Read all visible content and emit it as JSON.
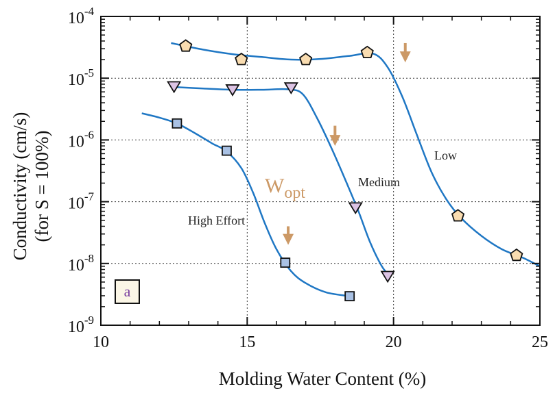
{
  "chart_data": {
    "type": "scatter",
    "xlabel": "Molding Water Content (%)",
    "ylabel_line1": "Conductivity (cm/s)",
    "ylabel_line2": "(for S = 100%)",
    "xlim": [
      10,
      25
    ],
    "ylim": [
      1e-09,
      0.0001
    ],
    "yscale": "log",
    "grid": true,
    "x_ticks": [
      "10",
      "15",
      "20",
      "25"
    ],
    "y_ticks": [
      {
        "base": "10",
        "exp": "-9",
        "value": 1e-09
      },
      {
        "base": "10",
        "exp": "-8",
        "value": 1e-08
      },
      {
        "base": "10",
        "exp": "-7",
        "value": 1e-07
      },
      {
        "base": "10",
        "exp": "-6",
        "value": 1e-06
      },
      {
        "base": "10",
        "exp": "-5",
        "value": 1e-05
      },
      {
        "base": "10",
        "exp": "-4",
        "value": 0.0001
      }
    ],
    "series": [
      {
        "name": "Low",
        "marker": "pentagon",
        "marker_color": "#f9dcb0",
        "points": [
          [
            12.9,
            3.3e-05
          ],
          [
            14.8,
            2e-05
          ],
          [
            17.0,
            2e-05
          ],
          [
            19.1,
            2.6e-05
          ],
          [
            22.2,
            5.9e-08
          ],
          [
            24.2,
            1.35e-08
          ]
        ],
        "curve": [
          [
            12.4,
            3.7e-05
          ],
          [
            13.5,
            2.9e-05
          ],
          [
            14.5,
            2.45e-05
          ],
          [
            15.5,
            2.2e-05
          ],
          [
            16.5,
            2e-05
          ],
          [
            17.5,
            2.05e-05
          ],
          [
            18.5,
            2.3e-05
          ],
          [
            19.3,
            2.5e-05
          ],
          [
            19.8,
            1.5e-05
          ],
          [
            20.3,
            5e-06
          ],
          [
            20.8,
            1.2e-06
          ],
          [
            21.3,
            3e-07
          ],
          [
            21.8,
            1.1e-07
          ],
          [
            22.3,
            5.5e-08
          ],
          [
            23.0,
            2.8e-08
          ],
          [
            23.7,
            1.7e-08
          ],
          [
            24.4,
            1.25e-08
          ],
          [
            25.0,
            9e-09
          ]
        ]
      },
      {
        "name": "Medium",
        "marker": "triangle-down",
        "marker_color": "#dcc3e4",
        "points": [
          [
            12.5,
            7.3e-06
          ],
          [
            14.5,
            6.5e-06
          ],
          [
            16.5,
            7e-06
          ],
          [
            18.7,
            8e-08
          ],
          [
            19.8,
            6.2e-09
          ]
        ],
        "curve": [
          [
            12.5,
            7.2e-06
          ],
          [
            13.5,
            6.8e-06
          ],
          [
            14.5,
            6.5e-06
          ],
          [
            15.5,
            6.5e-06
          ],
          [
            16.4,
            6.6e-06
          ],
          [
            16.9,
            5.5e-06
          ],
          [
            17.4,
            2.2e-06
          ],
          [
            17.9,
            7e-07
          ],
          [
            18.4,
            2e-07
          ],
          [
            18.8,
            7e-08
          ],
          [
            19.2,
            2.2e-08
          ],
          [
            19.6,
            9e-09
          ],
          [
            19.9,
            6e-09
          ]
        ]
      },
      {
        "name": "High Effort",
        "marker": "square",
        "marker_color": "#a9c1e4",
        "points": [
          [
            12.6,
            1.85e-06
          ],
          [
            14.3,
            6.7e-07
          ],
          [
            16.3,
            1.03e-08
          ],
          [
            18.5,
            2.95e-09
          ]
        ],
        "curve": [
          [
            11.4,
            2.7e-06
          ],
          [
            12.0,
            2.3e-06
          ],
          [
            12.6,
            1.85e-06
          ],
          [
            13.2,
            1.3e-06
          ],
          [
            13.8,
            8.8e-07
          ],
          [
            14.3,
            6.5e-07
          ],
          [
            14.8,
            3.5e-07
          ],
          [
            15.2,
            1.4e-07
          ],
          [
            15.6,
            4.5e-08
          ],
          [
            16.0,
            1.7e-08
          ],
          [
            16.5,
            7.5e-09
          ],
          [
            17.0,
            4.8e-09
          ],
          [
            17.7,
            3.4e-09
          ],
          [
            18.5,
            2.95e-09
          ]
        ]
      }
    ],
    "annotations": {
      "wopt_base": "W",
      "wopt_sub": "opt",
      "wopt_color": "#cc9966",
      "arrows": [
        {
          "x": 16.4,
          "from": 4e-08,
          "to": 2e-08
        },
        {
          "x": 18.0,
          "from": 1.7e-06,
          "to": 8e-07
        },
        {
          "x": 20.4,
          "from": 3.7e-05,
          "to": 1.8e-05
        }
      ],
      "panel_label": "a",
      "panel_label_color": "#7a3fa0",
      "curve_color": "#1f77c4"
    }
  }
}
